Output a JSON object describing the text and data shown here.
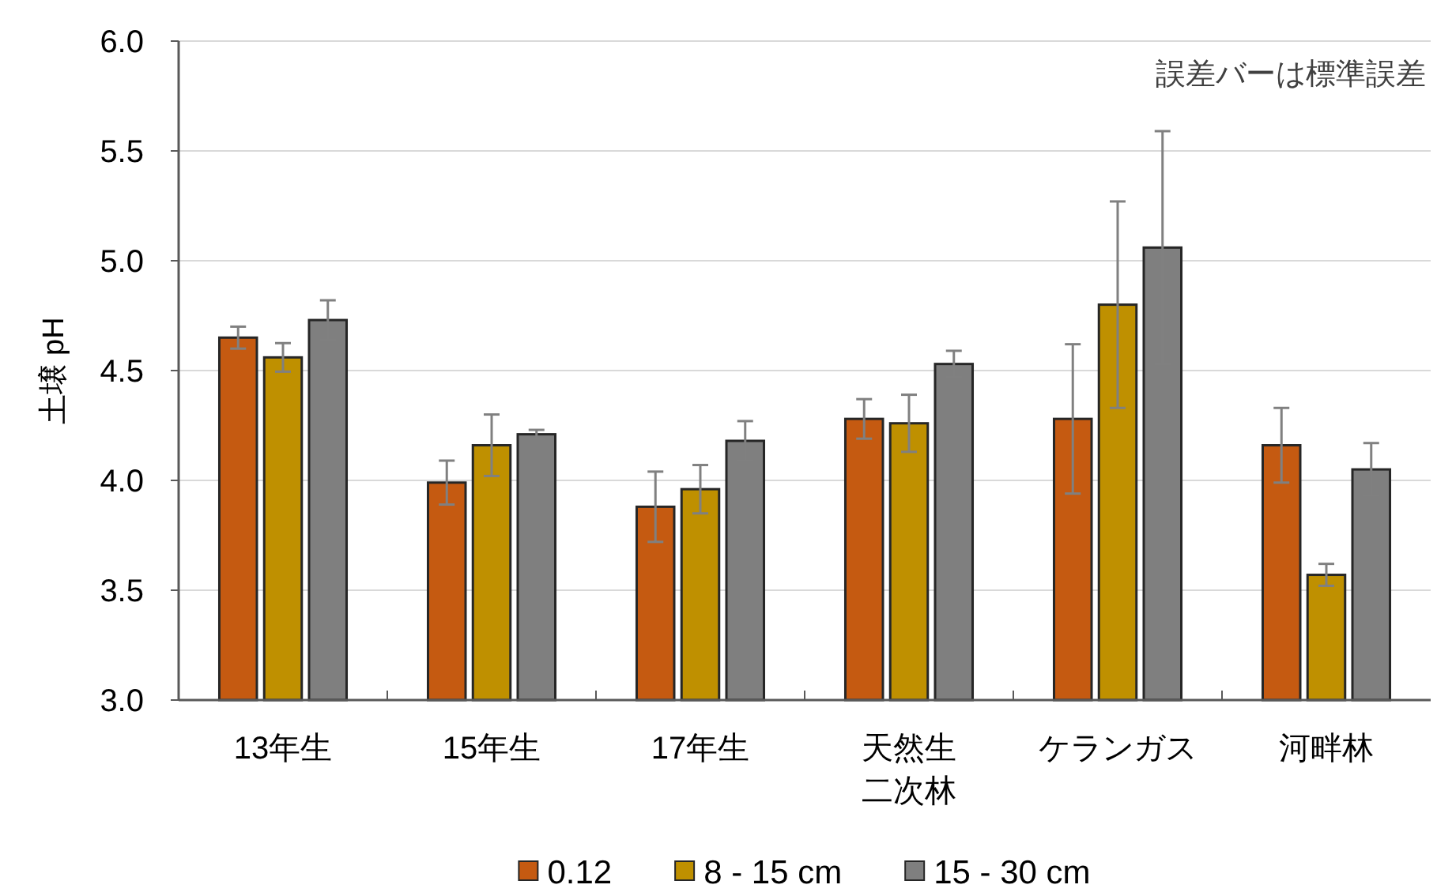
{
  "chart_data": {
    "type": "bar",
    "ylabel": "土壌 pH",
    "categories": [
      "13年生",
      "15年生",
      "17年生",
      "天然生二次林",
      "ケランガス",
      "河畔林"
    ],
    "series": [
      {
        "name": "0.12",
        "color": "#c55a11",
        "values": [
          4.65,
          3.99,
          3.88,
          4.28,
          4.28,
          4.16
        ],
        "errors": [
          0.05,
          0.1,
          0.16,
          0.09,
          0.34,
          0.17
        ]
      },
      {
        "name": "8 - 15 cm",
        "color": "#bf9000",
        "values": [
          4.56,
          4.16,
          3.96,
          4.26,
          4.8,
          3.57
        ],
        "errors": [
          0.065,
          0.14,
          0.11,
          0.13,
          0.47,
          0.05
        ]
      },
      {
        "name": "15 - 30 cm",
        "color": "#7f7f7f",
        "values": [
          4.73,
          4.21,
          4.18,
          4.53,
          5.06,
          4.05
        ],
        "errors": [
          0.09,
          0.02,
          0.09,
          0.06,
          0.53,
          0.12
        ]
      }
    ],
    "ylim": [
      3.0,
      6.0
    ],
    "yticks": [
      {
        "value": 3,
        "label": "3.0"
      },
      {
        "value": 3.5,
        "label": "3.5"
      },
      {
        "value": 4,
        "label": "4.0"
      },
      {
        "value": 4.5,
        "label": "4.5"
      },
      {
        "value": 5,
        "label": "5.0"
      },
      {
        "value": 5.5,
        "label": "5.5"
      },
      {
        "value": 6,
        "label": "6.0"
      }
    ],
    "grid": "y",
    "legend": "bottom",
    "annotations": [
      "誤差バーは標準誤差"
    ]
  }
}
